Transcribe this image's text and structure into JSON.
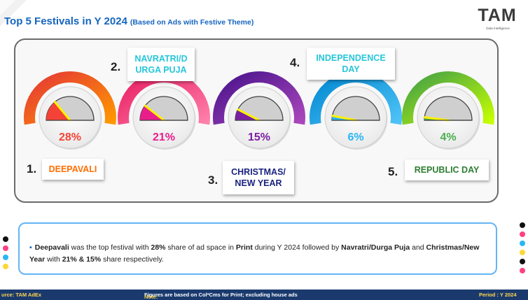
{
  "title": {
    "main": "Top 5 Festivals in Y 2024",
    "sub": "(Based on Ads with Festive Theme)"
  },
  "logo": {
    "text": "TAM",
    "tagline": "Data Intelligence"
  },
  "chart_data": {
    "type": "gauge",
    "unit": "%",
    "series": [
      {
        "rank": "1.",
        "name": "DEEPAVALI",
        "value": 28,
        "label": "28%",
        "color": "#f44336"
      },
      {
        "rank": "2.",
        "name": "NAVRATRI/D URGA PUJA",
        "value": 21,
        "label": "21%",
        "color": "#e91e8c"
      },
      {
        "rank": "3.",
        "name": "CHRISTMAS/ NEW YEAR",
        "value": 15,
        "label": "15%",
        "color": "#7b1fa2"
      },
      {
        "rank": "4.",
        "name": "INDEPENDENCE DAY",
        "value": 6,
        "label": "6%",
        "color": "#29b6f6"
      },
      {
        "rank": "5.",
        "name": "REPUBLIC DAY",
        "value": 4,
        "label": "4%",
        "color": "#4caf50"
      }
    ]
  },
  "boxes": {
    "b1": "DEEPAVALI",
    "b2a": "NAVRATRI/D",
    "b2b": "URGA PUJA",
    "b3a": "CHRISTMAS/",
    "b3b": "NEW YEAR",
    "b4a": "INDEPENDENCE",
    "b4b": "DAY",
    "b5": "REPUBLIC DAY"
  },
  "summary": {
    "t1": "Deepavali",
    "t2": " was the top festival with ",
    "t3": "28%",
    "t4": " share of ad space in ",
    "t5": "Print",
    "t6": " during Y 2024 followed by ",
    "t7": "Navratri/Durga Puja",
    "t8": " and ",
    "t9": "Christmas/New Year",
    "t10": " with ",
    "t11": "21% & 15%",
    "t12": " share respectively."
  },
  "footer": {
    "source": "urce: TAM AdEx",
    "note_label": "Note:",
    "note": " Figures are based on Col*Cms for Print; excluding house ads",
    "period": "Period : Y 2024"
  },
  "colors": {
    "title": "#1565c0",
    "footer_bg": "#1a3a6e",
    "footer_text": "#ffd54f",
    "summary_border": "#64b5f6"
  }
}
